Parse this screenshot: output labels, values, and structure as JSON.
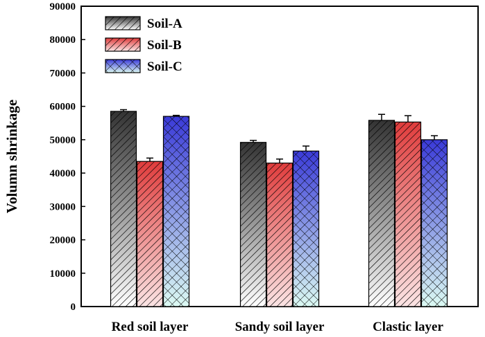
{
  "chart_data": {
    "type": "bar",
    "title": "",
    "xlabel": "",
    "ylabel": "Volumn shrinkage",
    "ylim": [
      0,
      90000
    ],
    "yticks": [
      0,
      10000,
      20000,
      30000,
      40000,
      50000,
      60000,
      70000,
      80000,
      90000
    ],
    "categories": [
      "Red soil layer",
      "Sandy soil layer",
      "Clastic layer"
    ],
    "series": [
      {
        "name": "Soil-A",
        "values": [
          58500,
          49200,
          55800
        ],
        "errors": [
          500,
          600,
          1800
        ],
        "color": "#333333",
        "pattern": "diagonal"
      },
      {
        "name": "Soil-B",
        "values": [
          43500,
          43000,
          55300
        ],
        "errors": [
          1000,
          1200,
          1900
        ],
        "color": "#e03c3c",
        "pattern": "diagonal"
      },
      {
        "name": "Soil-C",
        "values": [
          57000,
          46600,
          50000
        ],
        "errors": [
          300,
          1500,
          1200
        ],
        "color": "#3a3ad8",
        "pattern": "crosshatch"
      }
    ],
    "legend": "top-left",
    "grid": false
  }
}
